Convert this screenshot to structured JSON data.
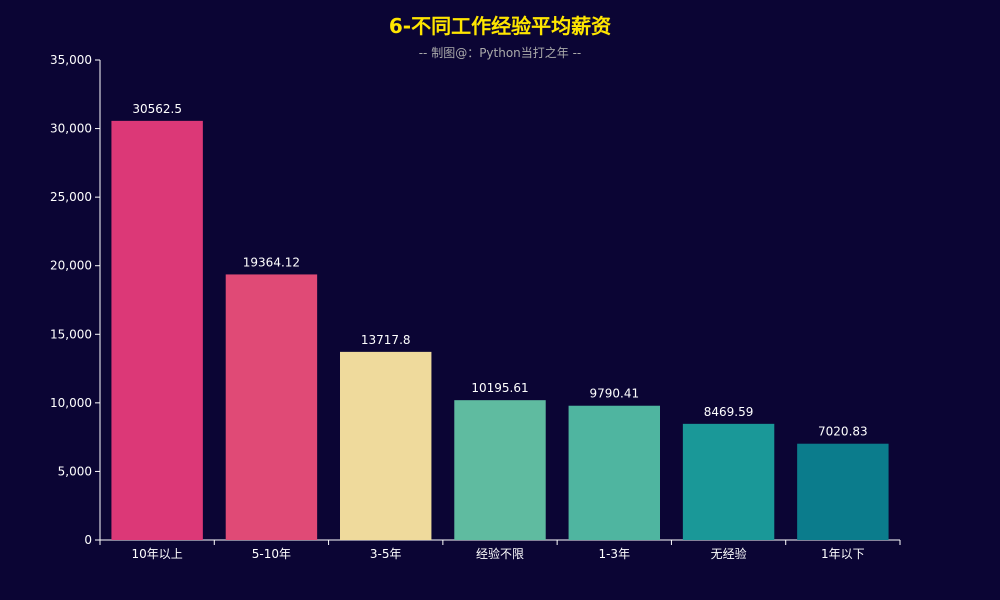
{
  "colors": {
    "background": "#0b0534",
    "title": "#ffe600",
    "subtitle": "#aaaaaa",
    "axis": "#ffffff",
    "bars": [
      "#dc3877",
      "#e04a76",
      "#efda9c",
      "#5fbba0",
      "#4fb5a0",
      "#1a9898",
      "#0b7c8c"
    ]
  },
  "chart_data": {
    "type": "bar",
    "title": "6-不同工作经验平均薪资",
    "subtitle": "-- 制图@：Python当打之年 --",
    "categories": [
      "10年以上",
      "5-10年",
      "3-5年",
      "经验不限",
      "1-3年",
      "无经验",
      "1年以下"
    ],
    "values": [
      30562.5,
      19364.12,
      13717.8,
      10195.61,
      9790.41,
      8469.59,
      7020.83
    ],
    "value_labels": [
      "30562.5",
      "19364.12",
      "13717.8",
      "10195.61",
      "9790.41",
      "8469.59",
      "7020.83"
    ],
    "ylim": [
      0,
      35000
    ],
    "yticks": [
      0,
      5000,
      10000,
      15000,
      20000,
      25000,
      30000,
      35000
    ],
    "ytick_labels": [
      "0",
      "5,000",
      "10,000",
      "15,000",
      "20,000",
      "25,000",
      "30,000",
      "35,000"
    ],
    "xlabel": "",
    "ylabel": "",
    "grid": false,
    "legend": "none"
  }
}
